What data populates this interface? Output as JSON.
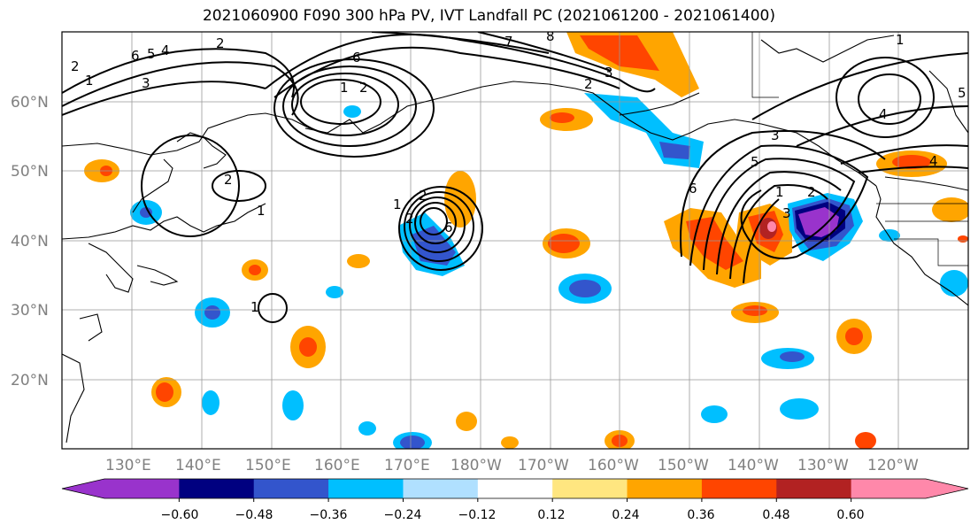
{
  "title": "2021060900 F090 300 hPa PV, IVT Landfall PC (2021061200 - 2021061400)",
  "map": {
    "projection": "cylindrical",
    "lon_range": [
      120,
      250
    ],
    "lat_range": [
      10,
      70
    ],
    "latitude_labels": [
      "20°N",
      "30°N",
      "40°N",
      "50°N",
      "60°N"
    ],
    "longitude_labels": [
      "130°E",
      "140°E",
      "150°E",
      "160°E",
      "170°E",
      "180°W",
      "170°W",
      "160°W",
      "150°W",
      "140°W",
      "130°W",
      "120°W"
    ],
    "gridlines": true
  },
  "contour_labels": [
    "6",
    "5",
    "4",
    "2",
    "1",
    "3",
    "2",
    "6",
    "1",
    "2",
    "7",
    "8",
    "2",
    "3",
    "1",
    "2",
    "1",
    "2",
    "6",
    "1",
    "2",
    "3",
    "6",
    "1",
    "2",
    "3",
    "5",
    "4",
    "4",
    "1",
    "5"
  ],
  "colorbar": {
    "ticks": [
      "−0.60",
      "−0.48",
      "−0.36",
      "−0.24",
      "−0.12",
      "0.12",
      "0.24",
      "0.36",
      "0.48",
      "0.60"
    ],
    "colors": [
      "#9933cc",
      "#000080",
      "#3355cc",
      "#00bfff",
      "#b0e0ff",
      "#ffffff",
      "#ffe680",
      "#ffa500",
      "#ff4500",
      "#b22222",
      "#ff88aa"
    ]
  }
}
